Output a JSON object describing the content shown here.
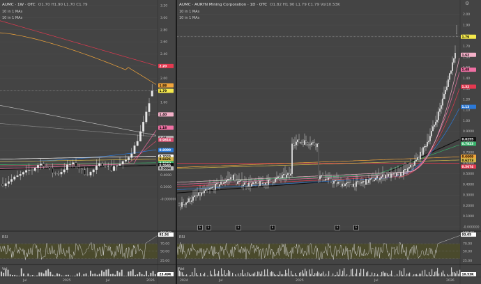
{
  "left": {
    "ticker": "AUMC · 1W · OTC",
    "ohlc": "O1.70 H1.90 L1.70 C1.79",
    "ma_line1": "10 in 1 MAs",
    "ma_line2": "10 in 1 MAs",
    "price_axis": [
      "3.20",
      "3.00",
      "2.80",
      "2.60",
      "2.40",
      "2.20",
      "2.00",
      "1.80",
      "1.60",
      "1.40",
      "1.20",
      "1.00",
      "0.8000",
      "0.6000",
      "0.4000",
      "0.2000",
      "-0.000000"
    ],
    "price_tags": [
      {
        "text": "2.20",
        "bg": "#e53950",
        "fg": "#ffffff",
        "v": 2.2
      },
      {
        "text": "1.88",
        "bg": "#f2a53a",
        "fg": "#000000",
        "v": 1.88
      },
      {
        "text": "1.79",
        "bg": "#f5e94c",
        "fg": "#000000",
        "v": 1.79
      },
      {
        "text": "1.40",
        "bg": "#f3b0c8",
        "fg": "#000000",
        "v": 1.4
      },
      {
        "text": "1.18",
        "bg": "#f06fa3",
        "fg": "#000000",
        "v": 1.18
      },
      {
        "text": "1.01",
        "bg": "#bbbbbb",
        "fg": "#000000",
        "v": 1.01
      },
      {
        "text": "0.9814",
        "bg": "#d94f70",
        "fg": "#ffffff",
        "v": 0.9814
      },
      {
        "text": "0.8099",
        "bg": "#2b79d8",
        "fg": "#ffffff",
        "v": 0.8099
      },
      {
        "text": "0.7025",
        "bg": "#ffffff",
        "fg": "#000000",
        "v": 0.7025
      },
      {
        "text": "0.6621",
        "bg": "#d4b84a",
        "fg": "#000000",
        "v": 0.6621
      },
      {
        "text": "0.5942",
        "bg": "#38b36b",
        "fg": "#ffffff",
        "v": 0.5942
      },
      {
        "text": "0.5646",
        "bg": "#111111",
        "fg": "#ffffff",
        "v": 0.5646
      },
      {
        "text": "0.5094",
        "bg": "#bbbbbb",
        "fg": "#000000",
        "v": 0.5094
      }
    ],
    "time_axis": [
      "Jul",
      "2025",
      "Jul",
      "2026"
    ],
    "rsi": {
      "label": "RSI",
      "axis": [
        "100.00",
        "70.00",
        "50.00",
        "25.00"
      ],
      "value": "92.56"
    },
    "vol": {
      "label": "Vol",
      "value": "23.49K"
    }
  },
  "right": {
    "ticker": "AUMC · AURYN Mining Corporation · 1D · OTC",
    "ohlc": "O1.82 H1.90 L1.79 C1.79 Vol10.53K",
    "ma_line1": "10 in 1 MAs",
    "ma_line2": "10 in 1 MAs",
    "price_axis": [
      "2.00",
      "1.90",
      "1.80",
      "1.70",
      "1.60",
      "1.50",
      "1.40",
      "1.30",
      "1.20",
      "1.10",
      "1.00",
      "0.9000",
      "0.8000",
      "0.7000",
      "0.6000",
      "0.5000",
      "0.4000",
      "0.3000",
      "0.2000",
      "0.1000",
      "-0.000000"
    ],
    "price_tags": [
      {
        "text": "1.79",
        "bg": "#f5e94c",
        "fg": "#000000",
        "v": 1.79
      },
      {
        "text": "1.62",
        "bg": "#f3b0c8",
        "fg": "#000000",
        "v": 1.62
      },
      {
        "text": "1.48",
        "bg": "#f06fa3",
        "fg": "#000000",
        "v": 1.48
      },
      {
        "text": "1.32",
        "bg": "#e53950",
        "fg": "#ffffff",
        "v": 1.32
      },
      {
        "text": "1.13",
        "bg": "#2b79d8",
        "fg": "#ffffff",
        "v": 1.13
      },
      {
        "text": "0.8255",
        "bg": "#111111",
        "fg": "#ffffff",
        "v": 0.8255
      },
      {
        "text": "0.7823",
        "bg": "#38b36b",
        "fg": "#ffffff",
        "v": 0.7823
      },
      {
        "text": "0.6609",
        "bg": "#f2a53a",
        "fg": "#000000",
        "v": 0.6609
      },
      {
        "text": "0.6273",
        "bg": "#d4b84a",
        "fg": "#000000",
        "v": 0.6273
      },
      {
        "text": "0.5674",
        "bg": "#e53950",
        "fg": "#ffffff",
        "v": 0.5674
      }
    ],
    "time_axis": [
      "2024",
      "Jul",
      "2025",
      "Jul",
      "2026"
    ],
    "event_markers": [
      "E",
      "E",
      "E",
      "E",
      "E",
      "E"
    ],
    "rsi": {
      "label": "RSI",
      "axis": [
        "100.00",
        "70.00",
        "50.00",
        "25.00"
      ],
      "value": "93.05"
    },
    "vol": {
      "label": "Vol",
      "value": "10.53K"
    }
  },
  "icons": {
    "settings": "gear-icon"
  }
}
